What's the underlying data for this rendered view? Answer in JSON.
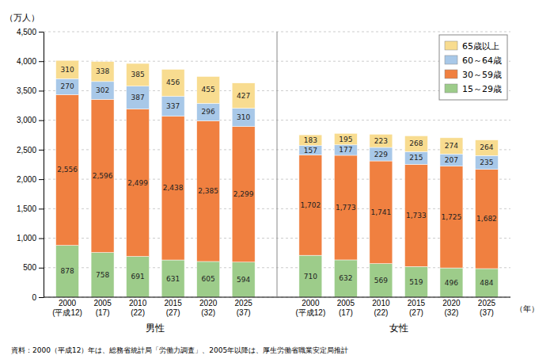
{
  "chart_data": {
    "type": "bar",
    "stacked": true,
    "data_labels": true,
    "grid": true,
    "legend": "upper right",
    "ylabel": "（万人）",
    "xlabel": "（年）",
    "note": "資料：2000（平成12）年は、総務省統計局「労働力調査」、2005年以降は、厚生労働省職業安定局推計",
    "groups": [
      {
        "label": "男性",
        "size": 6
      },
      {
        "label": "女性",
        "size": 6
      }
    ],
    "categories": [
      "2000\n(平成12)",
      "2005\n(17)",
      "2010\n(22)",
      "2015\n(27)",
      "2020\n(32)",
      "2025\n(37)",
      "2000\n(平成12)",
      "2005\n(17)",
      "2010\n(22)",
      "2015\n(27)",
      "2020\n(32)",
      "2025\n(37)"
    ],
    "series": [
      {
        "name": "15～29歳",
        "color": "#9dcc8a",
        "values": [
          878,
          758,
          691,
          631,
          605,
          594,
          710,
          632,
          569,
          519,
          496,
          484
        ]
      },
      {
        "name": "30～59歳",
        "color": "#f08040",
        "values": [
          2556,
          2596,
          2499,
          2438,
          2385,
          2299,
          1702,
          1773,
          1741,
          1733,
          1725,
          1682
        ],
        "value_labels": [
          "2,556",
          "2,596",
          "2,499",
          "2,438",
          "2,385",
          "2,299",
          "1,702",
          "1,773",
          "1,741",
          "1,733",
          "1,725",
          "1,682"
        ]
      },
      {
        "name": "60～64歳",
        "color": "#a8c8e8",
        "values": [
          270,
          302,
          387,
          337,
          296,
          310,
          157,
          177,
          229,
          215,
          207,
          235
        ]
      },
      {
        "name": "65歳以上",
        "color": "#f8dc90",
        "values": [
          310,
          338,
          385,
          456,
          455,
          427,
          183,
          195,
          223,
          268,
          274,
          264
        ]
      }
    ],
    "ylim": [
      0,
      4500
    ],
    "yticks": [
      0,
      500,
      {
        "value": 1000,
        "label": "1,000"
      },
      {
        "value": 1500,
        "label": "1,500"
      },
      {
        "value": 2000,
        "label": "2,000"
      },
      {
        "value": 2500,
        "label": "2,500"
      },
      {
        "value": 3000,
        "label": "3,000"
      },
      {
        "value": 3500,
        "label": "3,500"
      },
      {
        "value": 4000,
        "label": "4,000"
      },
      {
        "value": 4500,
        "label": "4,500"
      }
    ]
  }
}
